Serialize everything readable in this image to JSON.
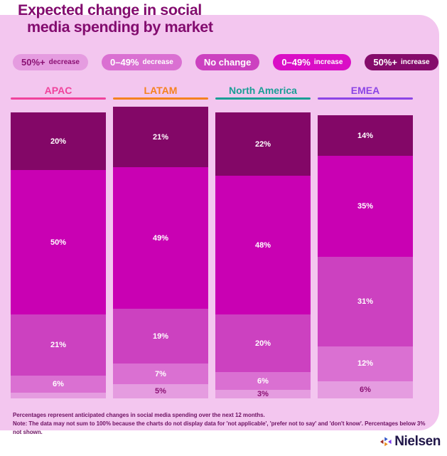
{
  "title": {
    "line1": "Expected change in social",
    "line2": "media spending by market"
  },
  "legend": {
    "items": [
      {
        "value": "50%+",
        "label": "decrease",
        "bg": "#E59CE0",
        "color": "#8B1173"
      },
      {
        "value": "0–49%",
        "label": "decrease",
        "bg": "#DA70D2",
        "color": "#FFFFFF"
      },
      {
        "value": "No change",
        "label": "",
        "bg": "#CC41C0",
        "color": "#FFFFFF"
      },
      {
        "value": "0–49%",
        "label": "increase",
        "bg": "#DA0EC6",
        "color": "#FFFFFF"
      },
      {
        "value": "50%+",
        "label": "increase",
        "bg": "#850C6B",
        "color": "#FFFFFF"
      }
    ]
  },
  "chart_data": {
    "type": "bar",
    "stacked": true,
    "orientation": "vertical",
    "unit": "%",
    "title": "Expected change in social media spending by market",
    "legend_position": "top",
    "categories": [
      "APAC",
      "LATAM",
      "North America",
      "EMEA"
    ],
    "category_colors": [
      "#F0439C",
      "#F58220",
      "#1A9E96",
      "#8C45E6"
    ],
    "series": [
      {
        "name": "50%+ increase",
        "color": "#830767",
        "label_color": "#FFFFFF",
        "values": [
          20,
          21,
          22,
          14
        ]
      },
      {
        "name": "0–49% increase",
        "color": "#C901B3",
        "label_color": "#FFFFFF",
        "values": [
          50,
          49,
          48,
          35
        ]
      },
      {
        "name": "No change",
        "color": "#CC41C0",
        "label_color": "#FFFFFF",
        "values": [
          21,
          19,
          20,
          31
        ]
      },
      {
        "name": "0–49% decrease",
        "color": "#DA70D2",
        "label_color": "#FFFFFF",
        "values": [
          6,
          7,
          6,
          12
        ]
      },
      {
        "name": "50%+ decrease",
        "color": "#E59CE0",
        "label_color": "#8B1173",
        "values": [
          2,
          5,
          3,
          6
        ]
      }
    ],
    "label_min_value": 3,
    "note": "Percentages below 3% not shown"
  },
  "footnotes": {
    "line1": "Percentages represent anticipated changes in social media spending over the next 12 months.",
    "line2": "Note: The data may not sum to 100% because the charts do not display data for 'not applicable', 'prefer not to say' and 'don't know'. Percentages below 3% not shown."
  },
  "brand": {
    "name": "Nielsen"
  }
}
